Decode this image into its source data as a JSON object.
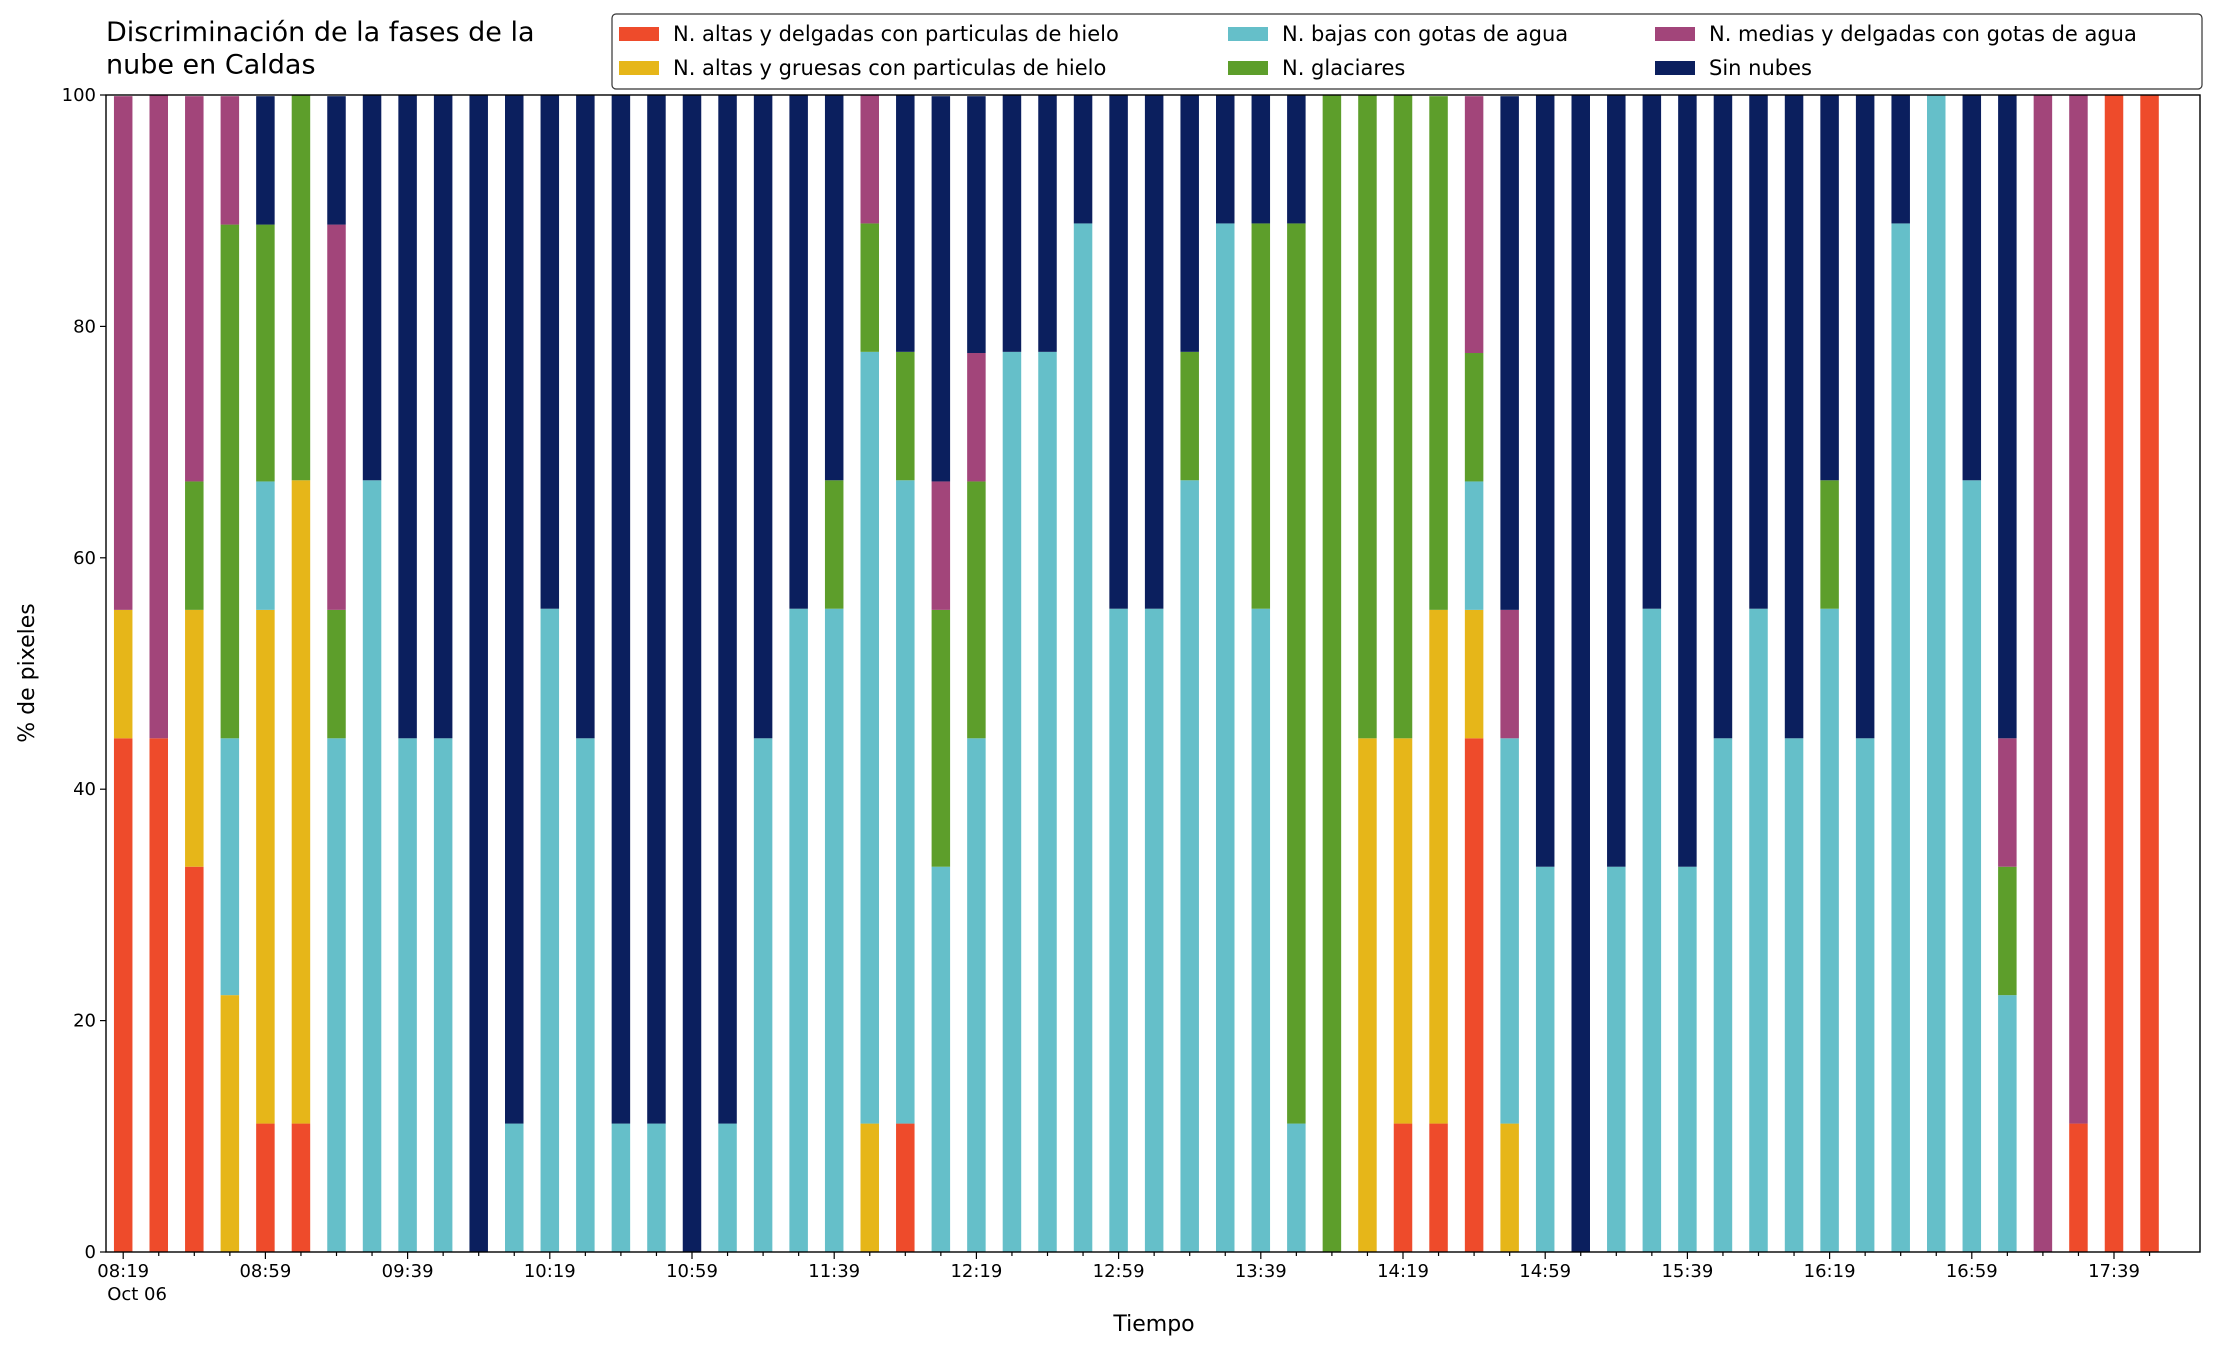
{
  "chart_data": {
    "type": "stacked_bar",
    "title": "Discriminación de la fases de la\nnube en Caldas",
    "x_label": "Tiempo",
    "y_label": "% de pixeles",
    "x_date_label": "Oct 06",
    "categories": [
      "08:19",
      null,
      null,
      null,
      "08:59",
      null,
      null,
      null,
      "09:39",
      null,
      null,
      null,
      "10:19",
      null,
      null,
      null,
      "10:59",
      null,
      null,
      null,
      "11:39",
      null,
      null,
      null,
      "12:19",
      null,
      null,
      null,
      "12:59",
      null,
      null,
      null,
      "13:39",
      null,
      null,
      null,
      "14:19",
      null,
      null,
      null,
      "14:59",
      null,
      null,
      null,
      "15:39",
      null,
      null,
      null,
      "16:19",
      null,
      null,
      null,
      "16:59",
      null,
      null,
      null,
      "17:39",
      null
    ],
    "series": [
      {
        "name": "N. altas y delgadas con particulas de hielo",
        "color": "#ee4b2b",
        "values": [
          44.4,
          44.4,
          33.3,
          0,
          11.1,
          11.1,
          0,
          0,
          0,
          0,
          0,
          0,
          0,
          0,
          0,
          0,
          0,
          0,
          0,
          0,
          0,
          0,
          11.1,
          0,
          0,
          0,
          0,
          0,
          0,
          0,
          0,
          0,
          0,
          0,
          0,
          0,
          11.1,
          11.1,
          44.4,
          0,
          0,
          0,
          0,
          0,
          0,
          0,
          0,
          0,
          0,
          0,
          0,
          0,
          0,
          0,
          0,
          11.1,
          100,
          100
        ]
      },
      {
        "name": "N. altas y gruesas con particulas de hielo",
        "color": "#e6b619",
        "values": [
          11.1,
          0,
          22.2,
          22.2,
          44.4,
          55.6,
          0,
          0,
          0,
          0,
          0,
          0,
          0,
          0,
          0,
          0,
          0,
          0,
          0,
          0,
          0,
          11.1,
          0,
          0,
          0,
          0,
          0,
          0,
          0,
          0,
          0,
          0,
          0,
          0,
          0,
          44.4,
          33.3,
          44.4,
          11.1,
          11.1,
          0,
          0,
          0,
          0,
          0,
          0,
          0,
          0,
          0,
          0,
          0,
          0,
          0,
          0,
          0,
          0,
          0,
          0
        ]
      },
      {
        "name": "N. bajas con gotas de agua",
        "color": "#65bfc9",
        "values": [
          0,
          0,
          0,
          22.2,
          11.1,
          0,
          44.4,
          66.7,
          44.4,
          44.4,
          0,
          11.1,
          55.6,
          44.4,
          11.1,
          11.1,
          0,
          11.1,
          44.4,
          55.6,
          55.6,
          66.7,
          55.6,
          33.3,
          44.4,
          77.8,
          77.8,
          88.9,
          55.6,
          55.6,
          66.7,
          88.9,
          55.6,
          11.1,
          0,
          0,
          0,
          0,
          11.1,
          33.3,
          33.3,
          0,
          33.3,
          55.6,
          33.3,
          44.4,
          55.6,
          44.4,
          55.6,
          44.4,
          88.9,
          100,
          66.7,
          22.2,
          0,
          0,
          0,
          0
        ]
      },
      {
        "name": "N. glaciares",
        "color": "#5d9e2b",
        "values": [
          0,
          0,
          11.1,
          44.4,
          22.2,
          33.3,
          11.1,
          0,
          0,
          0,
          0,
          0,
          0,
          0,
          0,
          0,
          0,
          0,
          0,
          0,
          11.1,
          11.1,
          11.1,
          22.2,
          22.2,
          0,
          0,
          0,
          0,
          0,
          11.1,
          0,
          33.3,
          77.8,
          100,
          55.6,
          55.6,
          44.4,
          11.1,
          0,
          0,
          0,
          0,
          0,
          0,
          0,
          0,
          0,
          11.1,
          0,
          0,
          0,
          0,
          11.1,
          0,
          0,
          0,
          0
        ]
      },
      {
        "name": "N. medias y delgadas con gotas de agua",
        "color": "#a2457a",
        "values": [
          44.4,
          55.6,
          33.3,
          11.1,
          0,
          0,
          33.3,
          0,
          0,
          0,
          0,
          0,
          0,
          0,
          0,
          0,
          0,
          0,
          0,
          0,
          0,
          11.1,
          0,
          11.1,
          11.1,
          0,
          0,
          0,
          0,
          0,
          0,
          0,
          0,
          0,
          0,
          0,
          0,
          0,
          22.2,
          11.1,
          0,
          0,
          0,
          0,
          0,
          0,
          0,
          0,
          0,
          0,
          0,
          0,
          0,
          11.1,
          100,
          88.9,
          0,
          0
        ]
      },
      {
        "name": "Sin nubes",
        "color": "#0b1f5e",
        "values": [
          0,
          0,
          0,
          0,
          11.1,
          0,
          11.1,
          33.3,
          55.6,
          55.6,
          100,
          88.9,
          44.4,
          55.6,
          88.9,
          88.9,
          100,
          88.9,
          55.6,
          44.4,
          33.3,
          0,
          22.2,
          33.3,
          22.2,
          22.2,
          22.2,
          11.1,
          44.4,
          44.4,
          22.2,
          11.1,
          11.1,
          11.1,
          0,
          0,
          0,
          0,
          0,
          44.4,
          66.7,
          100,
          66.7,
          44.4,
          66.7,
          55.6,
          44.4,
          55.6,
          33.3,
          55.6,
          11.1,
          0,
          33.3,
          55.6,
          0,
          0,
          0,
          0
        ]
      }
    ],
    "ylim": [
      0,
      100
    ],
    "yticks": [
      0,
      20,
      40,
      60,
      80,
      100
    ],
    "legend": "upper right"
  }
}
